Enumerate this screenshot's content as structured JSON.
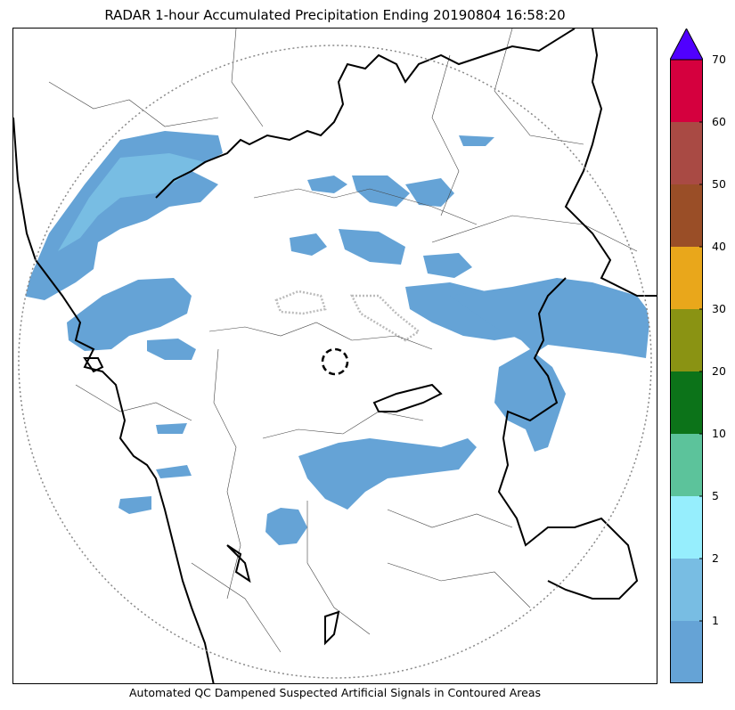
{
  "title": "RADAR 1-hour Accumulated Precipitation Ending 20190804 16:58:20",
  "footnote": "Automated QC Dampened Suspected Artificial Signals in Contoured Areas",
  "colorbar": {
    "ticks": [
      "70",
      "60",
      "50",
      "40",
      "30",
      "20",
      "10",
      "5",
      "2",
      "1"
    ],
    "levels": [
      {
        "color": "#65a3d6"
      },
      {
        "color": "#78bde3"
      },
      {
        "color": "#96eefd"
      },
      {
        "color": "#5cc39b"
      },
      {
        "color": "#0c7319"
      },
      {
        "color": "#8a9313"
      },
      {
        "color": "#e9a71b"
      },
      {
        "color": "#9a4e27"
      },
      {
        "color": "#a94a44"
      },
      {
        "color": "#d5003e"
      }
    ],
    "extend_color": "#5000ff"
  },
  "map_layers": {
    "precip_color": "#65a3d6",
    "precip_light_color": "#78bde3",
    "range_ring_color": "#888888",
    "border_color": "#000000",
    "qc_contour_color": "#bbbbbb"
  }
}
